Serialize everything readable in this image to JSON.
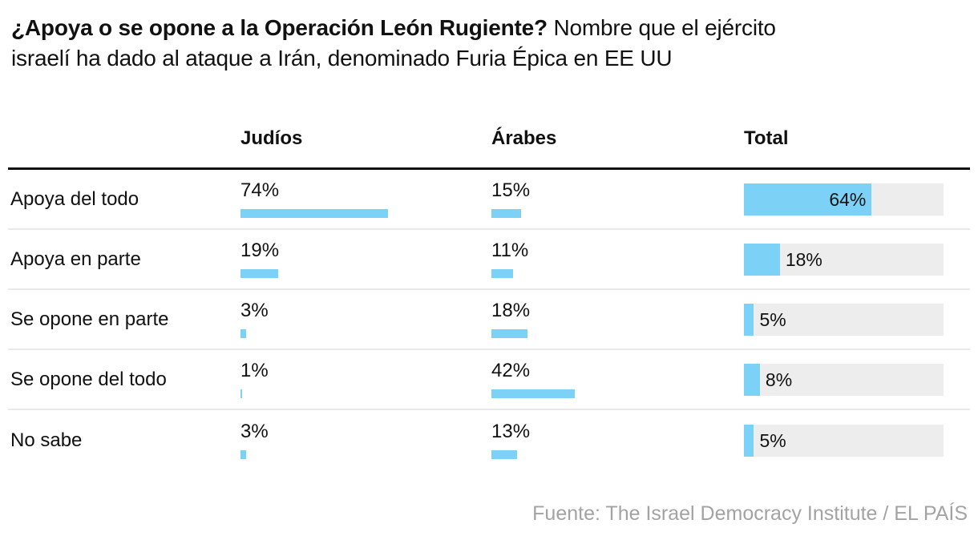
{
  "page": {
    "title_bold": "¿Apoya o se opone a la Operación León Rugiente?",
    "title_regular_line1": " Nombre que el ejército",
    "title_regular_line2": "israelí ha dado al ataque a Irán, denominado Furia Épica en EE UU",
    "source": "Fuente: The Israel Democracy Institute / EL PAÍS"
  },
  "columns": [
    "Judíos",
    "Árabes",
    "Total"
  ],
  "chart_data": {
    "type": "bar",
    "title": "¿Apoya o se opone a la Operación León Rugiente? Nombre que el ejército israelí ha dado al ataque a Irán, denominado Furia Épica en EE UU",
    "categories": [
      "Apoya del todo",
      "Apoya en parte",
      "Se opone en parte",
      "Se opone del todo",
      "No sabe"
    ],
    "series": [
      {
        "name": "Judíos",
        "values": [
          74,
          19,
          3,
          1,
          3
        ]
      },
      {
        "name": "Árabes",
        "values": [
          15,
          11,
          18,
          42,
          13
        ]
      },
      {
        "name": "Total",
        "values": [
          64,
          18,
          5,
          8,
          5
        ]
      }
    ],
    "unit": "%",
    "xlim": [
      0,
      100
    ],
    "grid": false,
    "legend_position": "column-headers",
    "total_bar_style": "filled-track-to-100"
  },
  "colors": {
    "bar_blue": "#7cd1f6",
    "track_gray": "#ededed",
    "rule_dark": "#111111",
    "separator_gray": "#e9e9e9",
    "source_gray": "#a3a3a3"
  }
}
